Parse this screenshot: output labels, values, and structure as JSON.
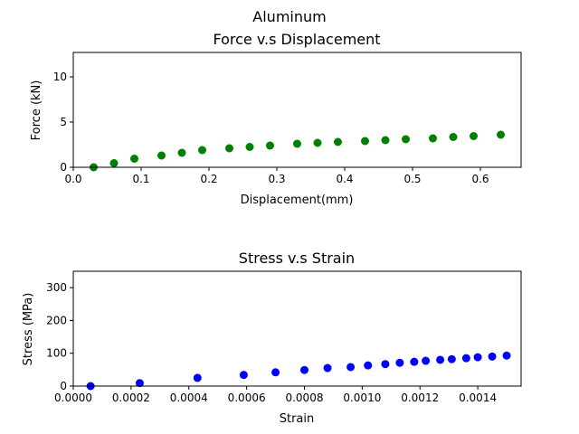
{
  "figure": {
    "suptitle": "Aluminum"
  },
  "chart_data": [
    {
      "type": "scatter",
      "title": "Force v.s Displacement",
      "xlabel": "Displacement(mm)",
      "ylabel": "Force (kN)",
      "xlim": [
        0.0,
        0.66
      ],
      "ylim": [
        0,
        12.7
      ],
      "xticks": [
        0.0,
        0.1,
        0.2,
        0.3,
        0.4,
        0.5,
        0.6
      ],
      "xtick_labels": [
        "0.0",
        "0.1",
        "0.2",
        "0.3",
        "0.4",
        "0.5",
        "0.6"
      ],
      "yticks": [
        0,
        5,
        10
      ],
      "ytick_labels": [
        "0",
        "5",
        "10"
      ],
      "grid": false,
      "color": "#008000",
      "x": [
        0.03,
        0.06,
        0.09,
        0.13,
        0.16,
        0.19,
        0.23,
        0.26,
        0.29,
        0.33,
        0.36,
        0.39,
        0.43,
        0.46,
        0.49,
        0.53,
        0.56,
        0.59,
        0.63
      ],
      "y": [
        0.0,
        0.45,
        0.95,
        1.3,
        1.6,
        1.9,
        2.1,
        2.25,
        2.4,
        2.6,
        2.7,
        2.8,
        2.9,
        3.0,
        3.1,
        3.2,
        3.35,
        3.45,
        3.6
      ]
    },
    {
      "type": "scatter",
      "title": "Stress v.s Strain",
      "xlabel": "Strain",
      "ylabel": "Stress (MPa)",
      "xlim": [
        0.0,
        0.00155
      ],
      "ylim": [
        0,
        350
      ],
      "xticks": [
        0.0,
        0.0002,
        0.0004,
        0.0006,
        0.0008,
        0.001,
        0.0012,
        0.0014
      ],
      "xtick_labels": [
        "0.0000",
        "0.0002",
        "0.0004",
        "0.0006",
        "0.0008",
        "0.0010",
        "0.0012",
        "0.0014"
      ],
      "yticks": [
        0,
        100,
        200,
        300
      ],
      "ytick_labels": [
        "0",
        "100",
        "200",
        "300"
      ],
      "grid": false,
      "color": "#0000ff",
      "x": [
        6e-05,
        0.00023,
        0.00043,
        0.00059,
        0.0007,
        0.0008,
        0.00088,
        0.00096,
        0.00102,
        0.00108,
        0.00113,
        0.00118,
        0.00122,
        0.00127,
        0.00131,
        0.00136,
        0.0014,
        0.00145,
        0.0015
      ],
      "y": [
        0,
        9,
        25,
        34,
        42,
        49,
        55,
        58,
        63,
        67,
        71,
        74,
        77,
        80,
        82,
        85,
        88,
        90,
        93
      ]
    }
  ]
}
